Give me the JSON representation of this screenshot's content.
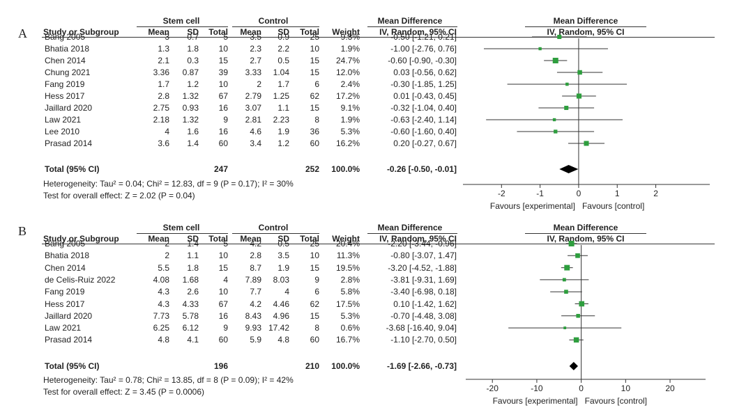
{
  "chart_data": [
    {
      "type": "forest",
      "panel_label": "A",
      "group_headers": {
        "experimental": "Stem cell",
        "control": "Control",
        "md": "Mean Difference",
        "plot_title": "Mean Difference"
      },
      "columns": [
        "Study or Subgroup",
        "Mean",
        "SD",
        "Total",
        "Mean",
        "SD",
        "Total",
        "Weight",
        "IV, Random, 95% CI"
      ],
      "plot_subtitle": "IV, Random, 95% CI",
      "studies": [
        {
          "name": "Bang 2005",
          "e_mean": "3",
          "e_sd": "0.7",
          "e_total": "5",
          "c_mean": "3.5",
          "c_sd": "0.9",
          "c_total": "25",
          "weight": "9.3%",
          "ci_text": "-0.50 [-1.21, 0.21]",
          "md": -0.5,
          "lo": -1.21,
          "hi": 0.21,
          "w": 9.3
        },
        {
          "name": "Bhatia 2018",
          "e_mean": "1.3",
          "e_sd": "1.8",
          "e_total": "10",
          "c_mean": "2.3",
          "c_sd": "2.2",
          "c_total": "10",
          "weight": "1.9%",
          "ci_text": "-1.00 [-2.76, 0.76]",
          "md": -1.0,
          "lo": -2.76,
          "hi": 0.76,
          "w": 1.9
        },
        {
          "name": "Chen 2014",
          "e_mean": "2.1",
          "e_sd": "0.3",
          "e_total": "15",
          "c_mean": "2.7",
          "c_sd": "0.5",
          "c_total": "15",
          "weight": "24.7%",
          "ci_text": "-0.60 [-0.90, -0.30]",
          "md": -0.6,
          "lo": -0.9,
          "hi": -0.3,
          "w": 24.7
        },
        {
          "name": "Chung 2021",
          "e_mean": "3.36",
          "e_sd": "0.87",
          "e_total": "39",
          "c_mean": "3.33",
          "c_sd": "1.04",
          "c_total": "15",
          "weight": "12.0%",
          "ci_text": "0.03 [-0.56, 0.62]",
          "md": 0.03,
          "lo": -0.56,
          "hi": 0.62,
          "w": 12.0
        },
        {
          "name": "Fang 2019",
          "e_mean": "1.7",
          "e_sd": "1.2",
          "e_total": "10",
          "c_mean": "2",
          "c_sd": "1.7",
          "c_total": "6",
          "weight": "2.4%",
          "ci_text": "-0.30 [-1.85, 1.25]",
          "md": -0.3,
          "lo": -1.85,
          "hi": 1.25,
          "w": 2.4
        },
        {
          "name": "Hess 2017",
          "e_mean": "2.8",
          "e_sd": "1.32",
          "e_total": "67",
          "c_mean": "2.79",
          "c_sd": "1.25",
          "c_total": "62",
          "weight": "17.2%",
          "ci_text": "0.01 [-0.43, 0.45]",
          "md": 0.01,
          "lo": -0.43,
          "hi": 0.45,
          "w": 17.2
        },
        {
          "name": "Jaillard 2020",
          "e_mean": "2.75",
          "e_sd": "0.93",
          "e_total": "16",
          "c_mean": "3.07",
          "c_sd": "1.1",
          "c_total": "15",
          "weight": "9.1%",
          "ci_text": "-0.32 [-1.04, 0.40]",
          "md": -0.32,
          "lo": -1.04,
          "hi": 0.4,
          "w": 9.1
        },
        {
          "name": "Law 2021",
          "e_mean": "2.18",
          "e_sd": "1.32",
          "e_total": "9",
          "c_mean": "2.81",
          "c_sd": "2.23",
          "c_total": "8",
          "weight": "1.9%",
          "ci_text": "-0.63 [-2.40, 1.14]",
          "md": -0.63,
          "lo": -2.4,
          "hi": 1.14,
          "w": 1.9
        },
        {
          "name": "Lee 2010",
          "e_mean": "4",
          "e_sd": "1.6",
          "e_total": "16",
          "c_mean": "4.6",
          "c_sd": "1.9",
          "c_total": "36",
          "weight": "5.3%",
          "ci_text": "-0.60 [-1.60, 0.40]",
          "md": -0.6,
          "lo": -1.6,
          "hi": 0.4,
          "w": 5.3
        },
        {
          "name": "Prasad 2014",
          "e_mean": "3.6",
          "e_sd": "1.4",
          "e_total": "60",
          "c_mean": "3.4",
          "c_sd": "1.2",
          "c_total": "60",
          "weight": "16.2%",
          "ci_text": "0.20 [-0.27, 0.67]",
          "md": 0.2,
          "lo": -0.27,
          "hi": 0.67,
          "w": 16.2
        }
      ],
      "total": {
        "label": "Total (95% CI)",
        "e_total": "247",
        "c_total": "252",
        "weight": "100.0%",
        "ci_text": "-0.26 [-0.50, -0.01]",
        "md": -0.26,
        "lo": -0.5,
        "hi": -0.01
      },
      "heterogeneity": "Heterogeneity: Tau² = 0.04; Chi² = 12.83, df = 9 (P = 0.17); I² = 30%",
      "overall_effect": "Test for overall effect: Z = 2.02 (P = 0.04)",
      "xticks": [
        -2,
        -1,
        0,
        1,
        2
      ],
      "xlim": [
        -3,
        3.4
      ],
      "favours_left": "Favours [experimental]",
      "favours_right": "Favours [control]",
      "marker_color": "#2e9e3e"
    },
    {
      "type": "forest",
      "panel_label": "B",
      "group_headers": {
        "experimental": "Stem cell",
        "control": "Control",
        "md": "Mean Difference",
        "plot_title": "Mean Difference"
      },
      "columns": [
        "Study or Subgroup",
        "Mean",
        "SD",
        "Total",
        "Mean",
        "SD",
        "Total",
        "Weight",
        "IV, Random, 95% CI"
      ],
      "plot_subtitle": "IV, Random, 95% CI",
      "studies": [
        {
          "name": "Bang 2005",
          "e_mean": "2",
          "e_sd": "1.4",
          "e_total": "5",
          "c_mean": "4.2",
          "c_sd": "0.5",
          "c_total": "25",
          "weight": "20.4%",
          "ci_text": "-2.20 [-3.44, -0.96]",
          "md": -2.2,
          "lo": -3.44,
          "hi": -0.96,
          "w": 20.4
        },
        {
          "name": "Bhatia 2018",
          "e_mean": "2",
          "e_sd": "1.1",
          "e_total": "10",
          "c_mean": "2.8",
          "c_sd": "3.5",
          "c_total": "10",
          "weight": "11.3%",
          "ci_text": "-0.80 [-3.07, 1.47]",
          "md": -0.8,
          "lo": -3.07,
          "hi": 1.47,
          "w": 11.3
        },
        {
          "name": "Chen 2014",
          "e_mean": "5.5",
          "e_sd": "1.8",
          "e_total": "15",
          "c_mean": "8.7",
          "c_sd": "1.9",
          "c_total": "15",
          "weight": "19.5%",
          "ci_text": "-3.20 [-4.52, -1.88]",
          "md": -3.2,
          "lo": -4.52,
          "hi": -1.88,
          "w": 19.5
        },
        {
          "name": "de Celis-Ruiz 2022",
          "e_mean": "4.08",
          "e_sd": "1.68",
          "e_total": "4",
          "c_mean": "7.89",
          "c_sd": "8.03",
          "c_total": "9",
          "weight": "2.8%",
          "ci_text": "-3.81 [-9.31, 1.69]",
          "md": -3.81,
          "lo": -9.31,
          "hi": 1.69,
          "w": 2.8
        },
        {
          "name": "Fang 2019",
          "e_mean": "4.3",
          "e_sd": "2.6",
          "e_total": "10",
          "c_mean": "7.7",
          "c_sd": "4",
          "c_total": "6",
          "weight": "5.8%",
          "ci_text": "-3.40 [-6.98, 0.18]",
          "md": -3.4,
          "lo": -6.98,
          "hi": 0.18,
          "w": 5.8
        },
        {
          "name": "Hess 2017",
          "e_mean": "4.3",
          "e_sd": "4.33",
          "e_total": "67",
          "c_mean": "4.2",
          "c_sd": "4.46",
          "c_total": "62",
          "weight": "17.5%",
          "ci_text": "0.10 [-1.42, 1.62]",
          "md": 0.1,
          "lo": -1.42,
          "hi": 1.62,
          "w": 17.5
        },
        {
          "name": "Jaillard 2020",
          "e_mean": "7.73",
          "e_sd": "5.78",
          "e_total": "16",
          "c_mean": "8.43",
          "c_sd": "4.96",
          "c_total": "15",
          "weight": "5.3%",
          "ci_text": "-0.70 [-4.48, 3.08]",
          "md": -0.7,
          "lo": -4.48,
          "hi": 3.08,
          "w": 5.3
        },
        {
          "name": "Law 2021",
          "e_mean": "6.25",
          "e_sd": "6.12",
          "e_total": "9",
          "c_mean": "9.93",
          "c_sd": "17.42",
          "c_total": "8",
          "weight": "0.6%",
          "ci_text": "-3.68 [-16.40, 9.04]",
          "md": -3.68,
          "lo": -16.4,
          "hi": 9.04,
          "w": 0.6
        },
        {
          "name": "Prasad 2014",
          "e_mean": "4.8",
          "e_sd": "4.1",
          "e_total": "60",
          "c_mean": "5.9",
          "c_sd": "4.8",
          "c_total": "60",
          "weight": "16.7%",
          "ci_text": "-1.10 [-2.70, 0.50]",
          "md": -1.1,
          "lo": -2.7,
          "hi": 0.5,
          "w": 16.7
        }
      ],
      "total": {
        "label": "Total (95% CI)",
        "e_total": "196",
        "c_total": "210",
        "weight": "100.0%",
        "ci_text": "-1.69 [-2.66, -0.73]",
        "md": -1.69,
        "lo": -2.66,
        "hi": -0.73
      },
      "heterogeneity": "Heterogeneity: Tau² = 0.78; Chi² = 13.85, df = 8 (P = 0.09); I² = 42%",
      "overall_effect": "Test for overall effect: Z = 3.45 (P = 0.0006)",
      "xticks": [
        -20,
        -10,
        0,
        10,
        20
      ],
      "xlim": [
        -26,
        28
      ],
      "favours_left": "Favours [experimental]",
      "favours_right": "Favours [control]",
      "marker_color": "#2e9e3e"
    }
  ]
}
